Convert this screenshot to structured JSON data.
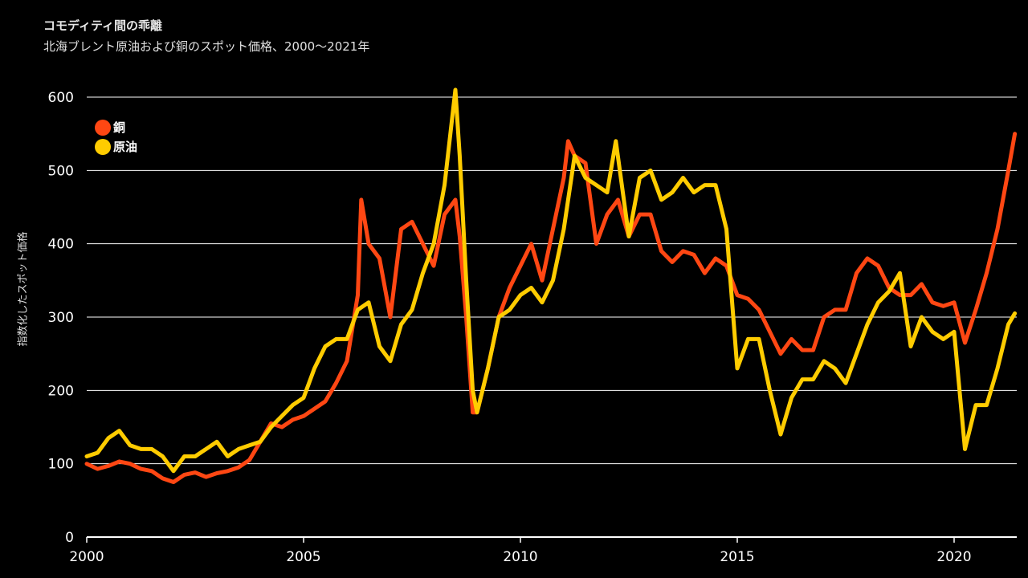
{
  "chart_data": {
    "type": "line",
    "title": "コモディティ間の乖離",
    "subtitle": "北海ブレント原油および銅のスポット価格、2000〜2021年",
    "xlabel": "",
    "ylabel": "指数化したスポット価格",
    "xlim": [
      2000,
      2021.4
    ],
    "ylim": [
      0,
      620
    ],
    "yticks": [
      0,
      100,
      200,
      300,
      400,
      500,
      600
    ],
    "xticks": [
      2000,
      2005,
      2010,
      2015,
      2020
    ],
    "grid": "horizontal",
    "legend_position": "top-left",
    "series": [
      {
        "name": "銅",
        "color": "#ff4713",
        "x": [
          2000,
          2000.25,
          2000.5,
          2000.75,
          2001,
          2001.25,
          2001.5,
          2001.75,
          2002,
          2002.25,
          2002.5,
          2002.75,
          2003,
          2003.25,
          2003.5,
          2003.75,
          2004,
          2004.25,
          2004.5,
          2004.75,
          2005,
          2005.25,
          2005.5,
          2005.75,
          2006,
          2006.25,
          2006.33,
          2006.5,
          2006.75,
          2007,
          2007.25,
          2007.5,
          2007.75,
          2008,
          2008.25,
          2008.5,
          2008.6,
          2008.75,
          2008.9,
          2009,
          2009.25,
          2009.5,
          2009.75,
          2010,
          2010.25,
          2010.5,
          2010.75,
          2011,
          2011.1,
          2011.25,
          2011.5,
          2011.75,
          2012,
          2012.25,
          2012.5,
          2012.75,
          2013,
          2013.25,
          2013.5,
          2013.75,
          2014,
          2014.25,
          2014.5,
          2014.75,
          2015,
          2015.25,
          2015.5,
          2015.75,
          2016,
          2016.25,
          2016.5,
          2016.75,
          2017,
          2017.25,
          2017.5,
          2017.75,
          2018,
          2018.25,
          2018.5,
          2018.75,
          2019,
          2019.25,
          2019.5,
          2019.75,
          2020,
          2020.25,
          2020.5,
          2020.75,
          2021,
          2021.25,
          2021.4
        ],
        "y": [
          100,
          93,
          97,
          103,
          100,
          93,
          90,
          80,
          75,
          85,
          88,
          82,
          87,
          90,
          95,
          105,
          130,
          155,
          150,
          160,
          165,
          175,
          185,
          210,
          240,
          330,
          460,
          400,
          380,
          300,
          420,
          430,
          400,
          370,
          440,
          460,
          410,
          300,
          170,
          170,
          230,
          300,
          340,
          370,
          400,
          350,
          420,
          490,
          540,
          520,
          510,
          400,
          440,
          460,
          410,
          440,
          440,
          390,
          375,
          390,
          385,
          360,
          380,
          370,
          330,
          325,
          310,
          280,
          250,
          270,
          255,
          255,
          300,
          310,
          310,
          360,
          380,
          370,
          340,
          330,
          330,
          345,
          320,
          315,
          320,
          265,
          310,
          360,
          420,
          500,
          550
        ]
      },
      {
        "name": "原油",
        "color": "#ffcc00",
        "x": [
          2000,
          2000.25,
          2000.5,
          2000.75,
          2001,
          2001.25,
          2001.5,
          2001.75,
          2002,
          2002.25,
          2002.5,
          2002.75,
          2003,
          2003.25,
          2003.5,
          2003.75,
          2004,
          2004.25,
          2004.5,
          2004.75,
          2005,
          2005.25,
          2005.5,
          2005.75,
          2006,
          2006.25,
          2006.5,
          2006.75,
          2007,
          2007.25,
          2007.5,
          2007.75,
          2008,
          2008.25,
          2008.5,
          2008.6,
          2008.75,
          2008.9,
          2009,
          2009.25,
          2009.5,
          2009.75,
          2010,
          2010.25,
          2010.5,
          2010.75,
          2011,
          2011.25,
          2011.5,
          2011.75,
          2012,
          2012.2,
          2012.5,
          2012.75,
          2013,
          2013.25,
          2013.5,
          2013.75,
          2014,
          2014.25,
          2014.5,
          2014.75,
          2015,
          2015.25,
          2015.5,
          2015.75,
          2016,
          2016.25,
          2016.5,
          2016.75,
          2017,
          2017.25,
          2017.5,
          2017.75,
          2018,
          2018.25,
          2018.5,
          2018.75,
          2019,
          2019.25,
          2019.5,
          2019.75,
          2020,
          2020.25,
          2020.5,
          2020.75,
          2021,
          2021.25,
          2021.4
        ],
        "y": [
          110,
          115,
          135,
          145,
          125,
          120,
          120,
          110,
          90,
          110,
          110,
          120,
          130,
          110,
          120,
          125,
          130,
          150,
          165,
          180,
          190,
          230,
          260,
          270,
          270,
          310,
          320,
          260,
          240,
          290,
          310,
          360,
          400,
          480,
          610,
          520,
          350,
          200,
          170,
          230,
          300,
          310,
          330,
          340,
          320,
          350,
          420,
          520,
          490,
          480,
          470,
          540,
          410,
          490,
          500,
          460,
          470,
          490,
          470,
          480,
          480,
          420,
          230,
          270,
          270,
          200,
          140,
          190,
          215,
          215,
          240,
          230,
          210,
          250,
          290,
          320,
          335,
          360,
          260,
          300,
          280,
          270,
          280,
          120,
          180,
          180,
          230,
          290,
          305
        ]
      }
    ]
  }
}
